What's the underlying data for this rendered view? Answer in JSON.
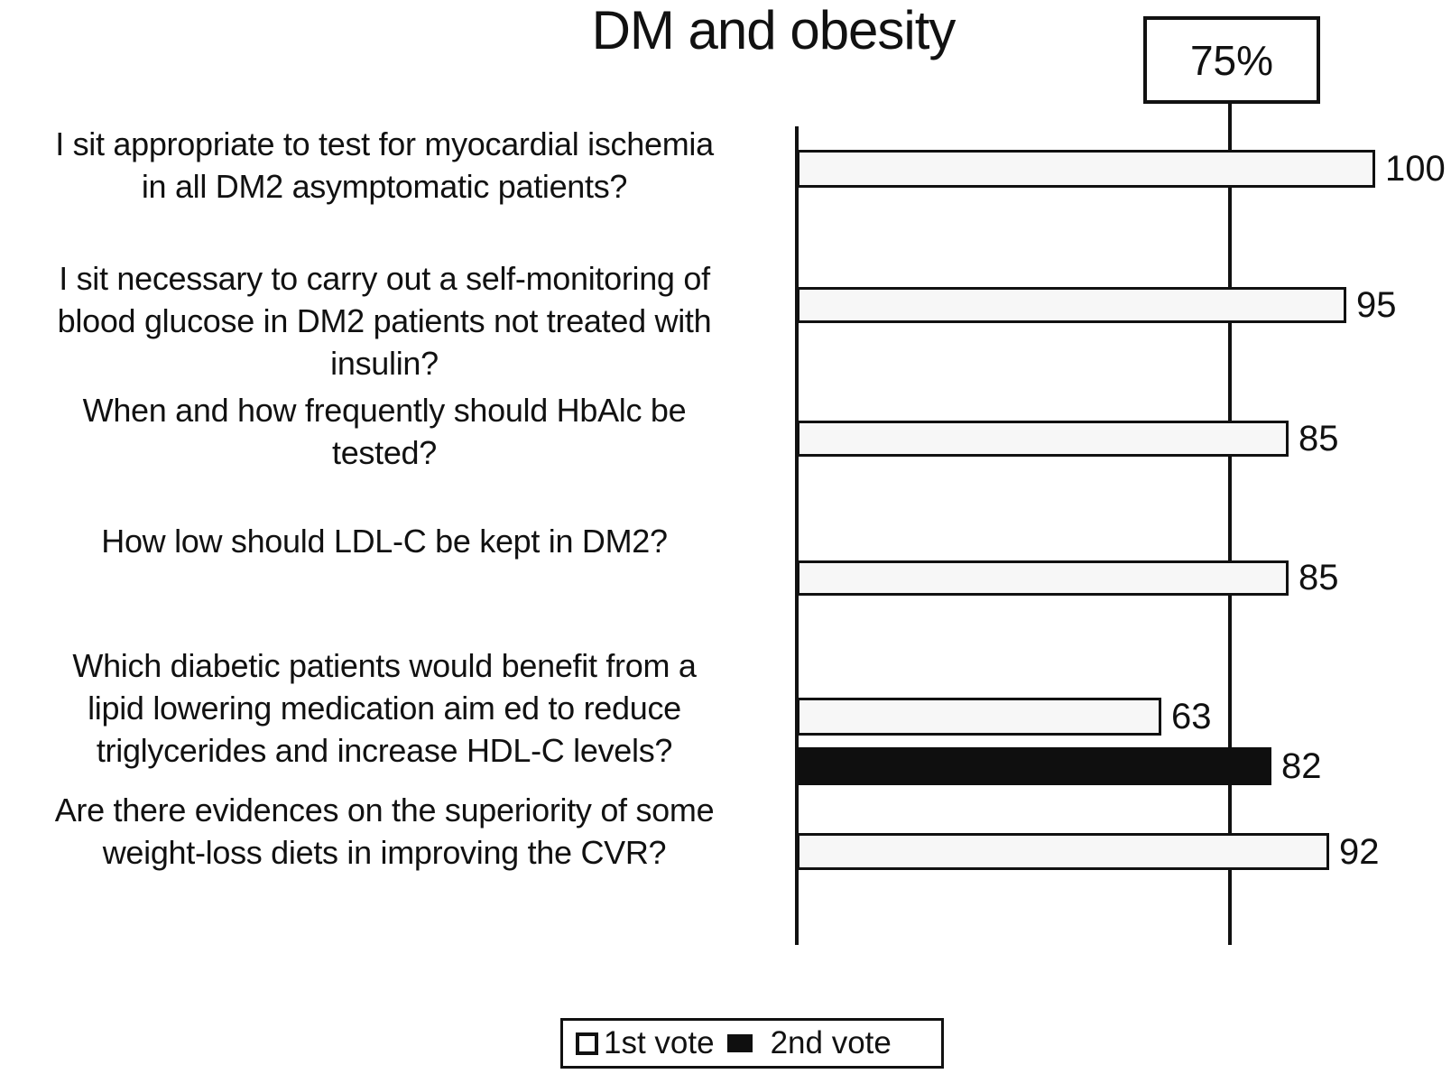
{
  "title": "DM and obesity",
  "reference": {
    "label": "75%",
    "value": 75
  },
  "legend": {
    "first": "1st vote",
    "second": "2nd vote"
  },
  "colors": {
    "ink": "#111111",
    "bar_fill": "#f7f7f7",
    "bar_filled": "#0f0f0f",
    "background": "#ffffff"
  },
  "questions": [
    {
      "lines": [
        "I sit appropriate to test for myocardial ischemia",
        "in all DM2 asymptomatic patients?"
      ]
    },
    {
      "lines": [
        "I sit necessary to carry out a self-monitoring of",
        "blood glucose in DM2 patients not treated with",
        "insulin?"
      ]
    },
    {
      "lines": [
        "When and how frequently should HbAlc be",
        "tested?"
      ]
    },
    {
      "lines": [
        "How low should LDL-C be kept in DM2?"
      ]
    },
    {
      "lines": [
        "Which diabetic patients would benefit from a",
        "lipid lowering medication aim ed to reduce",
        "triglycerides and increase HDL-C levels?"
      ]
    },
    {
      "lines": [
        "Are there evidences on the superiority of some",
        "weight-loss diets in improving the CVR?"
      ]
    }
  ],
  "bars": [
    {
      "value": 100,
      "label": "100",
      "series": "1st vote"
    },
    {
      "value": 95,
      "label": "95",
      "series": "1st vote"
    },
    {
      "value": 85,
      "label": "85",
      "series": "1st vote"
    },
    {
      "value": 85,
      "label": "85",
      "series": "1st vote"
    },
    {
      "value": 63,
      "label": "63",
      "series": "1st vote"
    },
    {
      "value": 82,
      "label": "82",
      "series": "2nd vote"
    },
    {
      "value": 92,
      "label": "92",
      "series": "1st vote"
    }
  ],
  "chart_data": {
    "type": "bar",
    "orientation": "horizontal",
    "title": "DM and obesity",
    "xlabel": "",
    "ylabel": "",
    "xlim": [
      0,
      105
    ],
    "grid": false,
    "legend_position": "bottom",
    "reference_line": {
      "value": 75,
      "label": "75%"
    },
    "categories": [
      "I sit appropriate to test for myocardial ischemia in all DM2 asymptomatic patients?",
      "I sit necessary to carry out a self-monitoring of blood glucose in DM2 patients not treated with insulin?",
      "When and how frequently should HbAlc be tested?",
      "How low should LDL-C be kept in DM2?",
      "Which diabetic patients would benefit from a lipid lowering medication aim ed to reduce triglycerides and increase HDL-C levels?",
      "Are there evidences on the superiority of some weight-loss diets in improving the CVR?"
    ],
    "series": [
      {
        "name": "1st vote",
        "values": [
          100,
          95,
          85,
          85,
          63,
          92
        ]
      },
      {
        "name": "2nd vote",
        "values": [
          null,
          null,
          null,
          null,
          82,
          null
        ]
      }
    ]
  }
}
